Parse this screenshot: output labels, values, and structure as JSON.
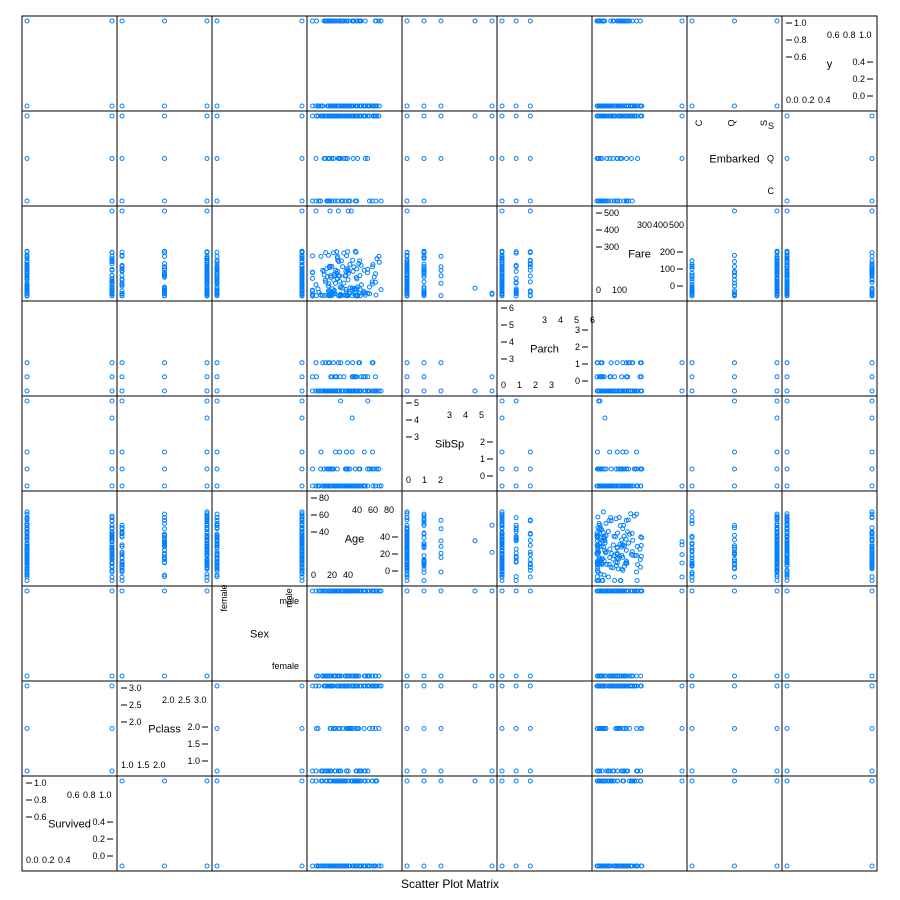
{
  "chart_data": {
    "type": "scatter",
    "title": "Scatter Plot Matrix",
    "variables": [
      {
        "name": "Survived",
        "range": [
          0,
          1
        ],
        "ticks_right": [
          "0.0",
          "0.2",
          "0.4"
        ],
        "ticks_left": [
          "0.4",
          "0.2",
          "0.0"
        ],
        "ticks_upper_right": [
          "0.6",
          "0.8",
          "1.0"
        ],
        "ticks_upper_left": [
          "1.0",
          "0.8",
          "0.6"
        ]
      },
      {
        "name": "Pclass",
        "range": [
          1,
          3
        ],
        "ticks_right": [
          "1.0",
          "1.5",
          "2.0"
        ],
        "ticks_left": [
          "2.0",
          "1.5",
          "1.0"
        ],
        "ticks_upper_right": [
          "2.0",
          "2.5",
          "3.0"
        ],
        "ticks_upper_left": [
          "3.0",
          "2.5",
          "2.0"
        ]
      },
      {
        "name": "Sex",
        "categories": [
          "female",
          "male"
        ]
      },
      {
        "name": "Age",
        "range": [
          0,
          80
        ],
        "ticks_right": [
          "0",
          "20",
          "40"
        ],
        "ticks_left": [
          "40",
          "20",
          "0"
        ],
        "ticks_upper_right": [
          "40",
          "60",
          "80"
        ],
        "ticks_upper_left": [
          "80",
          "60",
          "40"
        ]
      },
      {
        "name": "SibSp",
        "range": [
          0,
          5
        ],
        "ticks_right": [
          "0",
          "1",
          "2"
        ],
        "ticks_left": [
          "2",
          "1",
          "0"
        ],
        "ticks_upper_right": [
          "3",
          "4",
          "5"
        ],
        "ticks_upper_left": [
          "5",
          "4",
          "3"
        ]
      },
      {
        "name": "Parch",
        "range": [
          0,
          6
        ],
        "ticks_right": [
          "0",
          "1",
          "2",
          "3"
        ],
        "ticks_left": [
          "3",
          "2",
          "1",
          "0"
        ],
        "ticks_upper_right": [
          "3",
          "4",
          "5",
          "6"
        ],
        "ticks_upper_left": [
          "6",
          "5",
          "4",
          "3"
        ]
      },
      {
        "name": "Fare",
        "range": [
          0,
          512
        ],
        "ticks_right": [
          "0",
          "100"
        ],
        "ticks_left": [
          "200",
          "100",
          "0"
        ],
        "ticks_upper_right": [
          "300",
          "400",
          "500"
        ],
        "ticks_upper_left": [
          "500",
          "400",
          "300"
        ]
      },
      {
        "name": "Embarked",
        "categories": [
          "C",
          "Q",
          "S"
        ]
      },
      {
        "name": "y",
        "range": [
          0,
          1
        ],
        "ticks_right": [
          "0.0",
          "0.2",
          "0.4"
        ],
        "ticks_left": [
          "0.4",
          "0.2",
          "0.0"
        ],
        "ticks_upper_right": [
          "0.6",
          "0.8",
          "1.0"
        ],
        "ticks_upper_left": [
          "1.0",
          "0.8",
          "0.6"
        ]
      }
    ],
    "marker": "circle",
    "marker_color": "#0080ff",
    "grid": false
  }
}
